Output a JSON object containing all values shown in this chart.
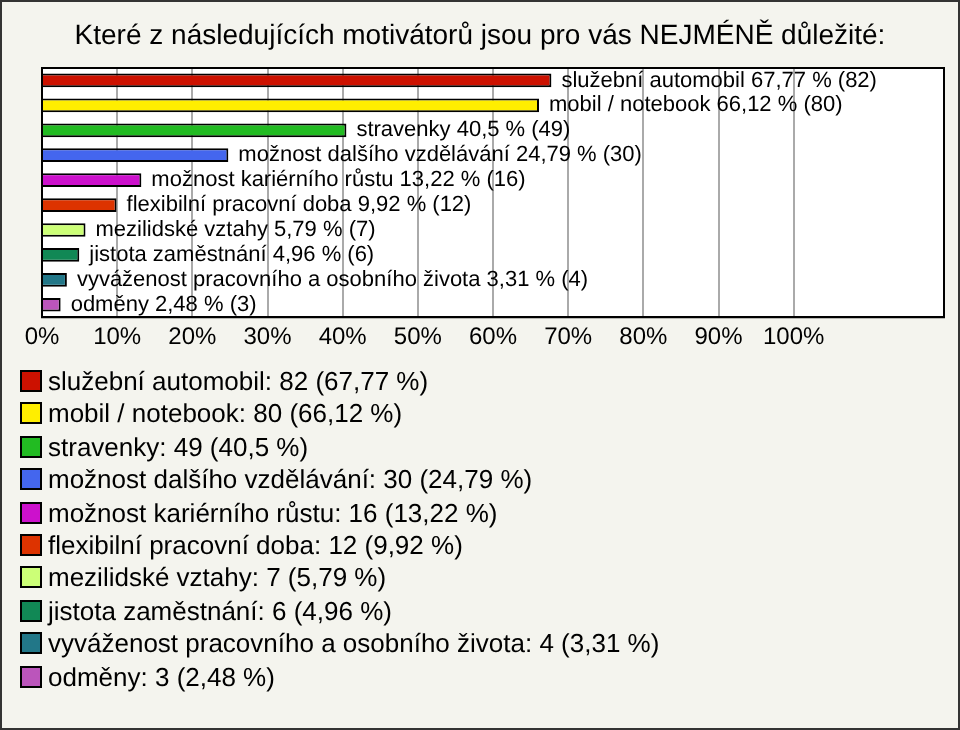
{
  "chart_data": {
    "type": "bar",
    "orientation": "horizontal",
    "title": "Které z následujících motivátorů jsou pro vás NEJMÉNĚ důležité:",
    "categories": [
      null,
      null,
      null,
      null,
      null,
      null,
      null,
      null,
      null,
      null
    ],
    "values": [
      67.77,
      66.12,
      40.5,
      24.79,
      13.22,
      9.92,
      5.79,
      4.96,
      3.31,
      2.48
    ],
    "colors": [
      "#cc1100",
      "#ffee00",
      "#22bb22",
      "#4466ee",
      "#cc11cc",
      "#dd3300",
      "#ccff77",
      "#118855",
      "#227788",
      "#bb55bb"
    ],
    "value_labels": [
      "služební automobil 67,77 % (82)",
      "mobil / notebook 66,12 % (80)",
      "stravenky 40,5 % (49)",
      "možnost dalšího vzdělávání 24,79 % (30)",
      "možnost kariérního růstu 13,22 % (16)",
      "flexibilní pracovní doba 9,92 % (12)",
      "mezilidské vztahy 5,79 % (7)",
      "jistota zaměstnání 4,96 % (6)",
      "vyváženost pracovního a osobního života 3,31 % (4)",
      "odměny 2,48 % (3)"
    ],
    "annotations": [
      "služební automobil: 82 (67,77 %)",
      "mobil / notebook: 80 (66,12 %)",
      "stravenky: 49 (40,5 %)",
      "možnost dalšího vzdělávání: 30 (24,79 %)",
      "možnost kariérního růstu: 16 (13,22 %)",
      "flexibilní pracovní doba: 12 (9,92 %)",
      "mezilidské vztahy: 7 (5,79 %)",
      "jistota zaměstnání: 6 (4,96 %)",
      "vyváženost pracovního a osobního života: 4 (3,31 %)",
      "odměny: 3 (2,48 %)"
    ],
    "xlim": [
      0,
      120
    ],
    "xticks": [
      {
        "value": 0,
        "label": "0%"
      },
      {
        "value": 10,
        "label": "10%"
      },
      {
        "value": 20,
        "label": "20%"
      },
      {
        "value": 30,
        "label": "30%"
      },
      {
        "value": 40,
        "label": "40%"
      },
      {
        "value": 50,
        "label": "50%"
      },
      {
        "value": 60,
        "label": "60%"
      },
      {
        "value": 70,
        "label": "70%"
      },
      {
        "value": 80,
        "label": "80%"
      },
      {
        "value": 90,
        "label": "90%"
      },
      {
        "value": 100,
        "label": "100%"
      }
    ],
    "grid": "x",
    "tick_labels": "x"
  }
}
